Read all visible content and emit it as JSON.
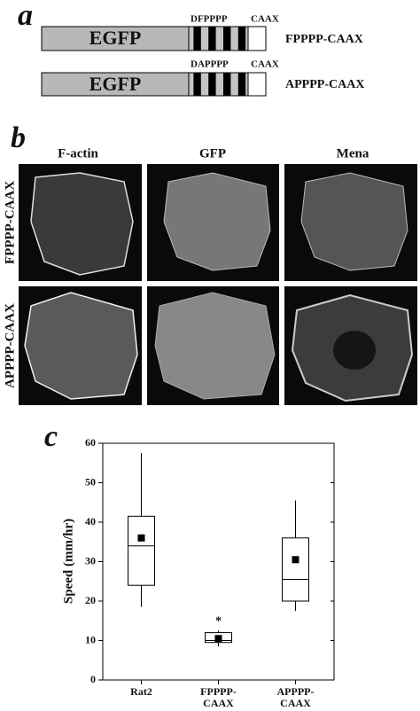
{
  "panel_a": {
    "label": "a",
    "constructs": [
      {
        "box": "EGFP",
        "motif": "DFPPPP",
        "tail": "CAAX",
        "name": "FPPPP-CAAX"
      },
      {
        "box": "EGFP",
        "motif": "DAPPPP",
        "tail": "CAAX",
        "name": "APPPP-CAAX"
      }
    ]
  },
  "panel_b": {
    "label": "b",
    "columns": [
      "F-actin",
      "GFP",
      "Mena"
    ],
    "rows": [
      "FPPPP-CAAX",
      "APPPP-CAAX"
    ]
  },
  "chart_data": {
    "type": "box",
    "label": "c",
    "y_label": "Speed (mm/hr)",
    "categories": [
      [
        "Rat2"
      ],
      [
        "FPPPP-",
        "CAAX"
      ],
      [
        "APPPP-",
        "CAAX"
      ]
    ],
    "boxes": [
      {
        "min": 18.5,
        "q1": 24,
        "median": 34,
        "q3": 41.5,
        "max": 57.5,
        "mean": 36
      },
      {
        "min": 8.5,
        "q1": 9.5,
        "median": 10,
        "q3": 12,
        "max": 12.5,
        "mean": 10.5
      },
      {
        "min": 17.5,
        "q1": 20,
        "median": 25.5,
        "q3": 36,
        "max": 45.5,
        "mean": 30.5
      }
    ],
    "annotation": {
      "text": "*",
      "category": 1
    },
    "ylim": [
      0,
      60
    ],
    "yticks": [
      0,
      10,
      20,
      30,
      40,
      50,
      60
    ],
    "color": "#000"
  }
}
